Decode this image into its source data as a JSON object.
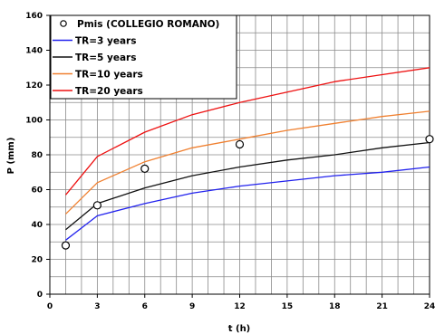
{
  "chart_data": {
    "type": "line",
    "xlabel": "t (h)",
    "ylabel": "P (mm)",
    "xlim": [
      0,
      24
    ],
    "ylim": [
      0,
      160
    ],
    "x_ticks": [
      "0",
      "3",
      "6",
      "9",
      "12",
      "15",
      "18",
      "21",
      "24"
    ],
    "y_ticks": [
      "0",
      "20",
      "40",
      "60",
      "80",
      "100",
      "120",
      "140",
      "160"
    ],
    "grid": true,
    "legend_position": "top-left",
    "measured": {
      "name": "Pmis (COLLEGIO ROMANO)",
      "points": [
        {
          "x": 1,
          "y": 28
        },
        {
          "x": 3,
          "y": 51
        },
        {
          "x": 6,
          "y": 72
        },
        {
          "x": 12,
          "y": 86
        },
        {
          "x": 24,
          "y": 89
        }
      ]
    },
    "series": [
      {
        "name": "TR=3 years",
        "color": "#2222ee",
        "x": [
          1,
          3,
          6,
          9,
          12,
          15,
          18,
          21,
          24
        ],
        "values": [
          31,
          45,
          52,
          58,
          62,
          65,
          68,
          70,
          73
        ]
      },
      {
        "name": "TR=5 years",
        "color": "#111111",
        "x": [
          1,
          3,
          6,
          9,
          12,
          15,
          18,
          21,
          24
        ],
        "values": [
          37,
          52,
          61,
          68,
          73,
          77,
          80,
          84,
          87
        ]
      },
      {
        "name": "TR=10 years",
        "color": "#f08030",
        "x": [
          1,
          3,
          6,
          9,
          12,
          15,
          18,
          21,
          24
        ],
        "values": [
          46,
          64,
          76,
          84,
          89,
          94,
          98,
          102,
          105
        ]
      },
      {
        "name": "TR=20 years",
        "color": "#ee1111",
        "x": [
          1,
          3,
          6,
          9,
          12,
          15,
          18,
          21,
          24
        ],
        "values": [
          57,
          79,
          93,
          103,
          110,
          116,
          122,
          126,
          130
        ]
      }
    ]
  }
}
